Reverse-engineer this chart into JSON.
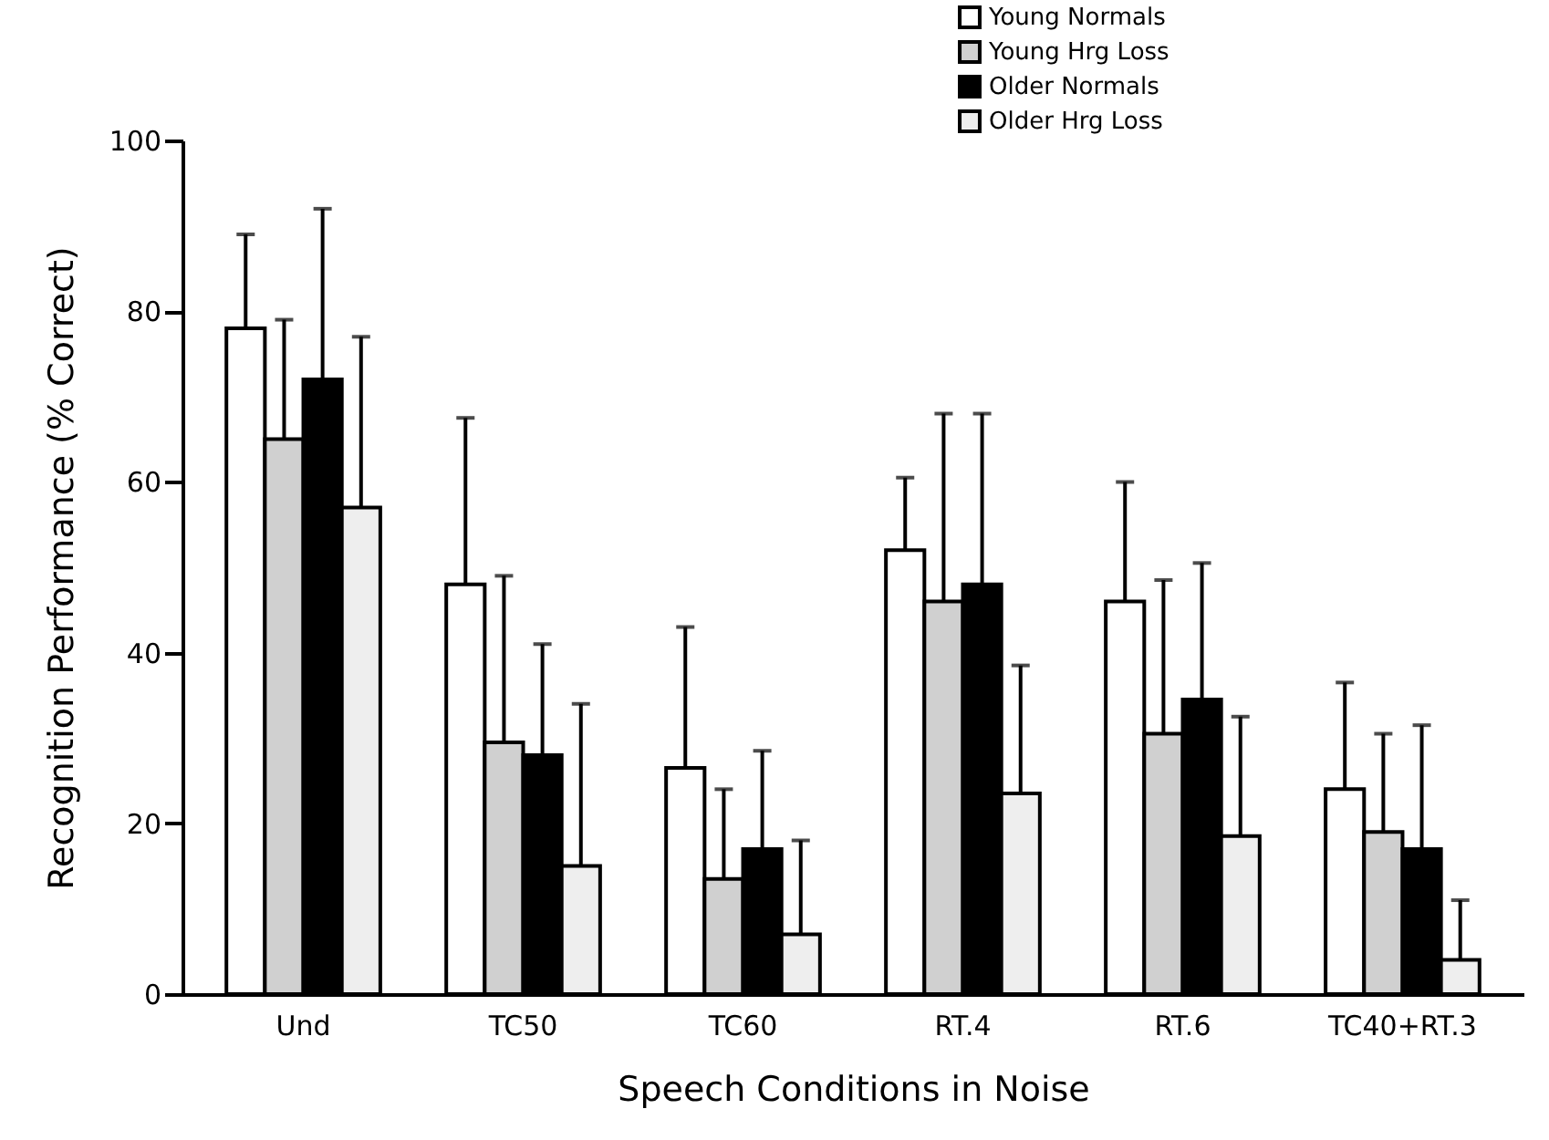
{
  "chart_data": {
    "type": "bar",
    "xlabel": "Speech Conditions in Noise",
    "ylabel": "Recognition Performance (% Correct)",
    "categories": [
      "Und",
      "TC50",
      "TC60",
      "RT.4",
      "RT.6",
      "TC40+RT.3"
    ],
    "ylim": [
      0,
      100
    ],
    "yticks": [
      0,
      20,
      40,
      60,
      80,
      100
    ],
    "grid": false,
    "legend": "top right",
    "series": [
      {
        "name": "Young Normals",
        "color": "#ffffff",
        "values": [
          78,
          48,
          26.5,
          52,
          46,
          24
        ],
        "errors": [
          [
            78,
            89
          ],
          [
            48,
            67.5
          ],
          [
            26.5,
            43
          ],
          [
            52,
            60.5
          ],
          [
            46,
            60
          ],
          [
            24,
            36.5
          ]
        ]
      },
      {
        "name": "Young Hrg Loss",
        "color": "#d0d0d0",
        "values": [
          65,
          29.5,
          13.5,
          46,
          30.5,
          19
        ],
        "errors": [
          [
            65,
            79
          ],
          [
            29.5,
            49
          ],
          [
            13.5,
            24
          ],
          [
            46,
            68
          ],
          [
            30.5,
            48.5
          ],
          [
            19,
            30.5
          ]
        ]
      },
      {
        "name": "Older Normals",
        "color": "#000000",
        "values": [
          72,
          28,
          17,
          48,
          34.5,
          17
        ],
        "errors": [
          [
            72,
            92
          ],
          [
            28,
            41
          ],
          [
            17,
            28.5
          ],
          [
            48,
            68
          ],
          [
            34.5,
            50.5
          ],
          [
            17,
            31.5
          ]
        ]
      },
      {
        "name": "Older Hrg Loss",
        "color": "#eeeeee",
        "values": [
          57,
          15,
          7,
          23.5,
          18.5,
          4
        ],
        "errors": [
          [
            57,
            77
          ],
          [
            15,
            34
          ],
          [
            7,
            18
          ],
          [
            23.5,
            38.5
          ],
          [
            18.5,
            32.5
          ],
          [
            4,
            11
          ]
        ]
      }
    ]
  }
}
